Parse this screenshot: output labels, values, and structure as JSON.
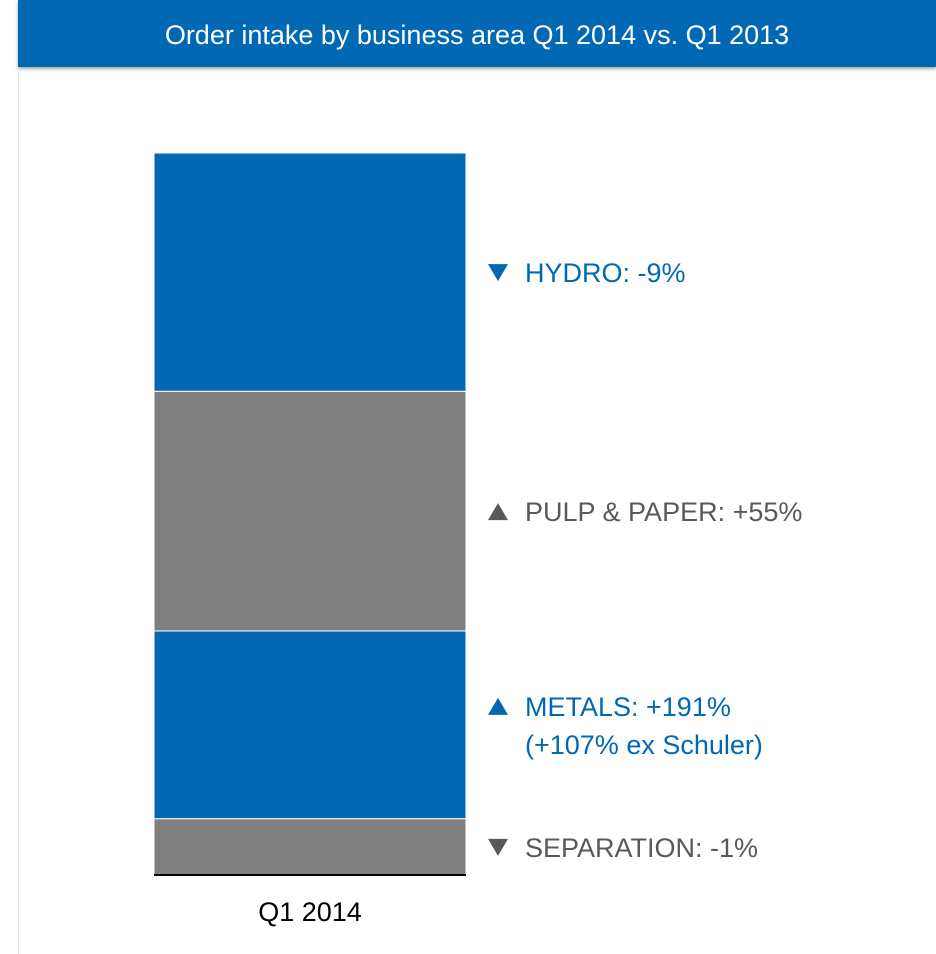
{
  "header": {
    "title": "Order intake by business area Q1 2014 vs. Q1 2013"
  },
  "chart_data": {
    "type": "bar",
    "stacked": true,
    "title": "Order intake by business area Q1 2014 vs. Q1 2013",
    "categories": [
      "Q1 2014"
    ],
    "unit": "percent share of order intake",
    "series": [
      {
        "name": "SEPARATION",
        "values": [
          7.8
        ],
        "color": "#808080",
        "change": "-1%",
        "direction": "down",
        "label_color": "#595959",
        "lines": [
          "SEPARATION: -1%"
        ]
      },
      {
        "name": "METALS",
        "values": [
          26.0
        ],
        "color": "#0169b4",
        "change": "+191%",
        "direction": "up",
        "label_color": "#0169b4",
        "lines": [
          "METALS: +191%",
          "(+107% ex Schuler)"
        ]
      },
      {
        "name": "PULP & PAPER",
        "values": [
          33.2
        ],
        "color": "#808080",
        "change": "+55%",
        "direction": "up",
        "label_color": "#595959",
        "lines": [
          "PULP & PAPER: +55%"
        ]
      },
      {
        "name": "HYDRO",
        "values": [
          33.0
        ],
        "color": "#0169b4",
        "change": "-9%",
        "direction": "down",
        "label_color": "#0169b4",
        "lines": [
          "HYDRO: -9%"
        ]
      }
    ],
    "grid": false,
    "legend": "right-side labels"
  }
}
